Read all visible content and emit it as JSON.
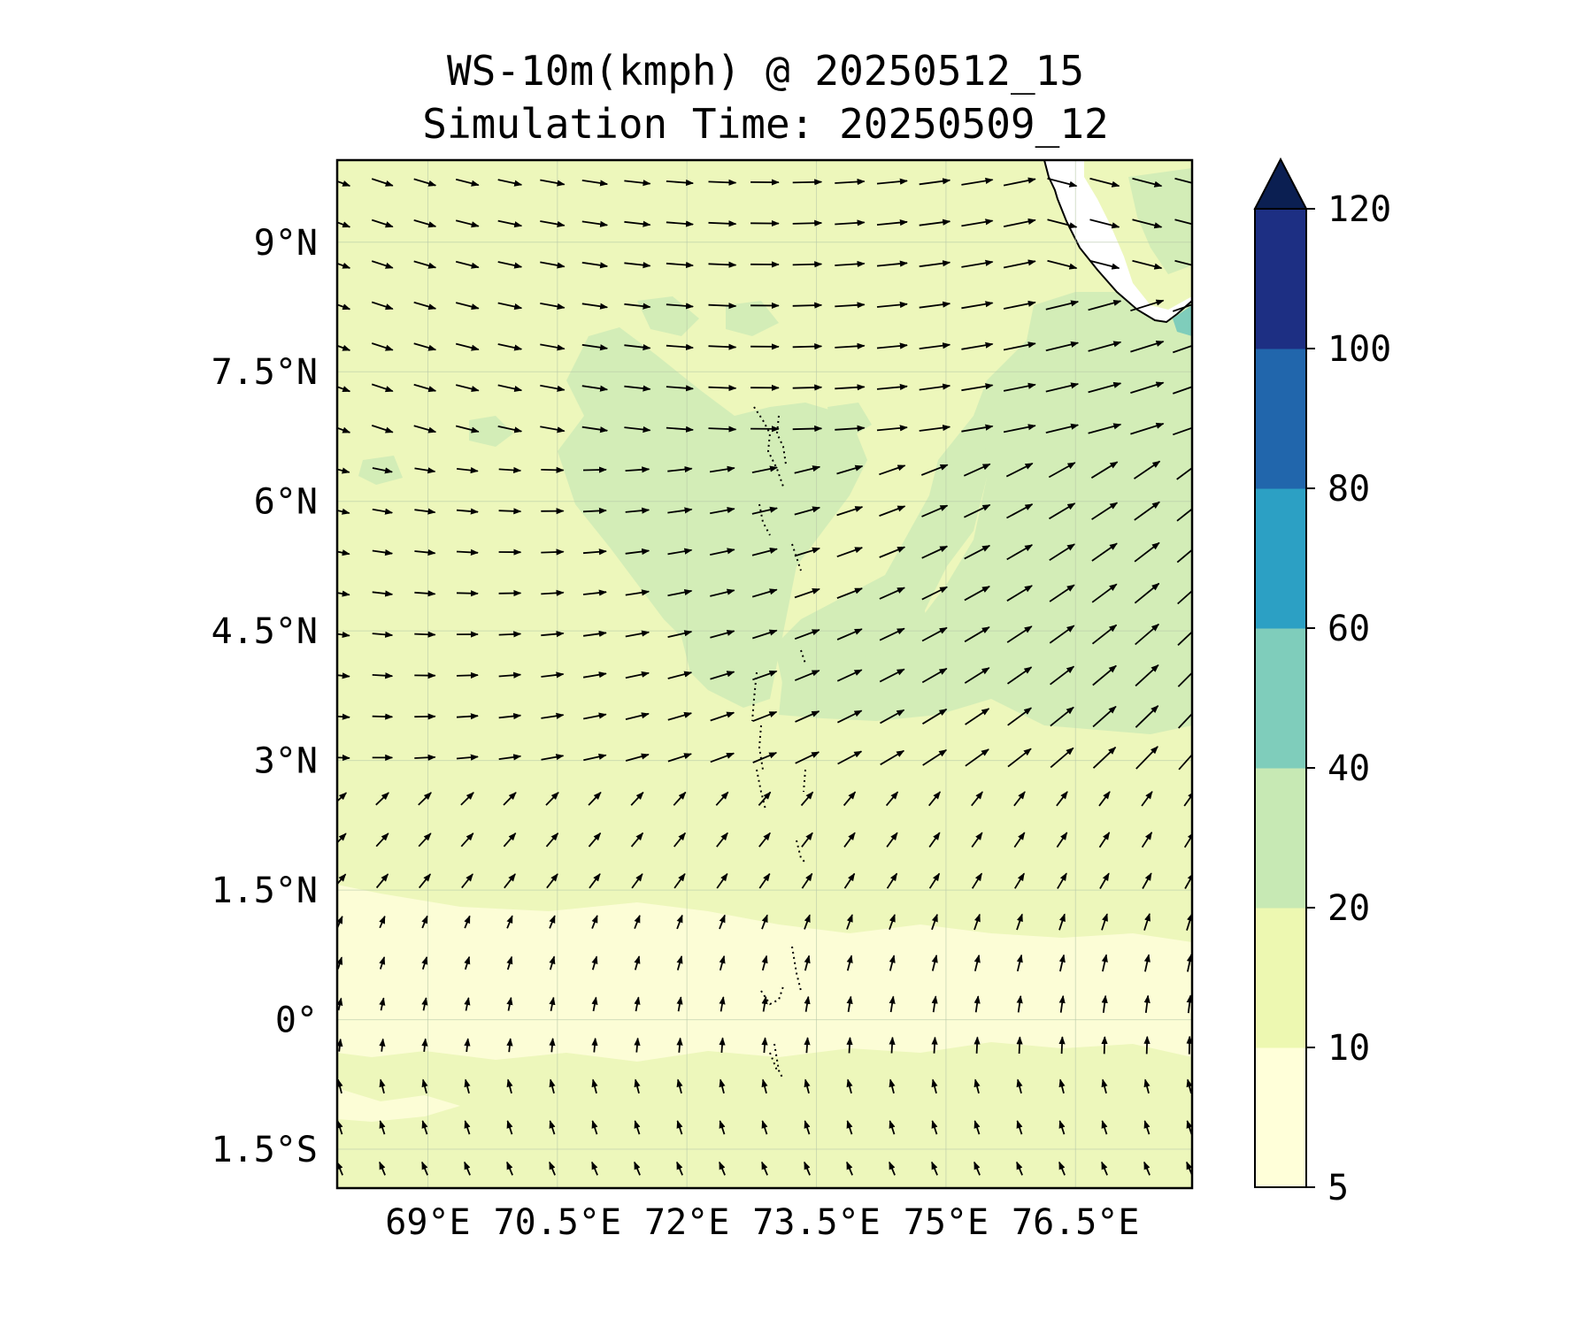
{
  "title": {
    "line1": "WS-10m(kmph) @ 20250512_15",
    "line2": "Simulation Time: 20250509_12"
  },
  "map": {
    "projection": "PlateCarree",
    "extent": {
      "lon_min": 67.95,
      "lon_max": 77.85,
      "lat_min": -1.95,
      "lat_max": 9.95
    },
    "gridlines": true,
    "coastline_color": "#000000",
    "island_outline": "dotted",
    "lat_ticks": [
      {
        "value": 9,
        "label": "9°N"
      },
      {
        "value": 7.5,
        "label": "7.5°N"
      },
      {
        "value": 6,
        "label": "6°N"
      },
      {
        "value": 4.5,
        "label": "4.5°N"
      },
      {
        "value": 3,
        "label": "3°N"
      },
      {
        "value": 1.5,
        "label": "1.5°N"
      },
      {
        "value": 0,
        "label": "0°"
      },
      {
        "value": -1.5,
        "label": "1.5°S"
      }
    ],
    "lon_ticks": [
      {
        "value": 69,
        "label": "69°E"
      },
      {
        "value": 70.5,
        "label": "70.5°E"
      },
      {
        "value": 72,
        "label": "72°E"
      },
      {
        "value": 73.5,
        "label": "73.5°E"
      },
      {
        "value": 75,
        "label": "75°E"
      },
      {
        "value": 76.5,
        "label": "76.5°E"
      }
    ],
    "wind_vectors": "quiver field, mostly westerly/west-northwesterly north of 3°N, southwesterly to southerly near the equator and southeasterly south of the equator"
  },
  "colorbar": {
    "levels": [
      5,
      10,
      20,
      40,
      60,
      80,
      100,
      120
    ],
    "labels": [
      "5",
      "10",
      "20",
      "40",
      "60",
      "80",
      "100",
      "120"
    ],
    "colors": [
      "#ffffd9",
      "#edf8b1",
      "#c7e9b4",
      "#7fcdbb",
      "#2ca0c4",
      "#2166ac",
      "#1d2f83"
    ],
    "extend_color": "#0b1f52",
    "extend": "max"
  },
  "fill_colors": {
    "below_10": "#fcfdd6",
    "10_to_20": "#edf7bb",
    "20_to_40": "#d3edb7",
    "40_to_60": "#7fcdbb",
    "land": "#ffffff"
  }
}
